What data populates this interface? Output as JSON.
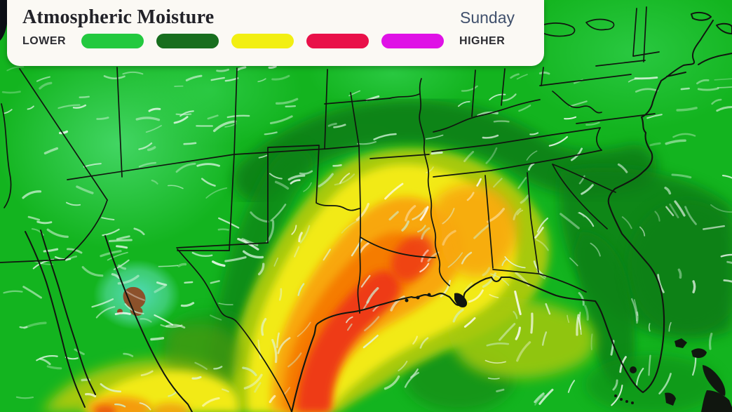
{
  "header": {
    "title": "Atmospheric Moisture",
    "day": "Sunday"
  },
  "legend": {
    "low_label": "LOWER",
    "high_label": "HIGHER",
    "stops": [
      {
        "name": "bright-green",
        "color": "#23c93f"
      },
      {
        "name": "dark-green",
        "color": "#176e1e"
      },
      {
        "name": "yellow",
        "color": "#f2ef12"
      },
      {
        "name": "red",
        "color": "#e91149"
      },
      {
        "name": "magenta",
        "color": "#df12e6"
      }
    ]
  },
  "map": {
    "palette": {
      "base_green": "#13b41f",
      "dark_green": "#0a7c12",
      "yellow_green": "#a6c90d",
      "yellow": "#f2ea12",
      "orange": "#f8a70d",
      "deep_orange": "#f57c04",
      "red": "#ee3a14",
      "dry_brown": "#8f4a24",
      "cyan_spot": "#52dcc4",
      "border_color": "#10160f",
      "wind_streak_color": "#ffffff"
    }
  }
}
